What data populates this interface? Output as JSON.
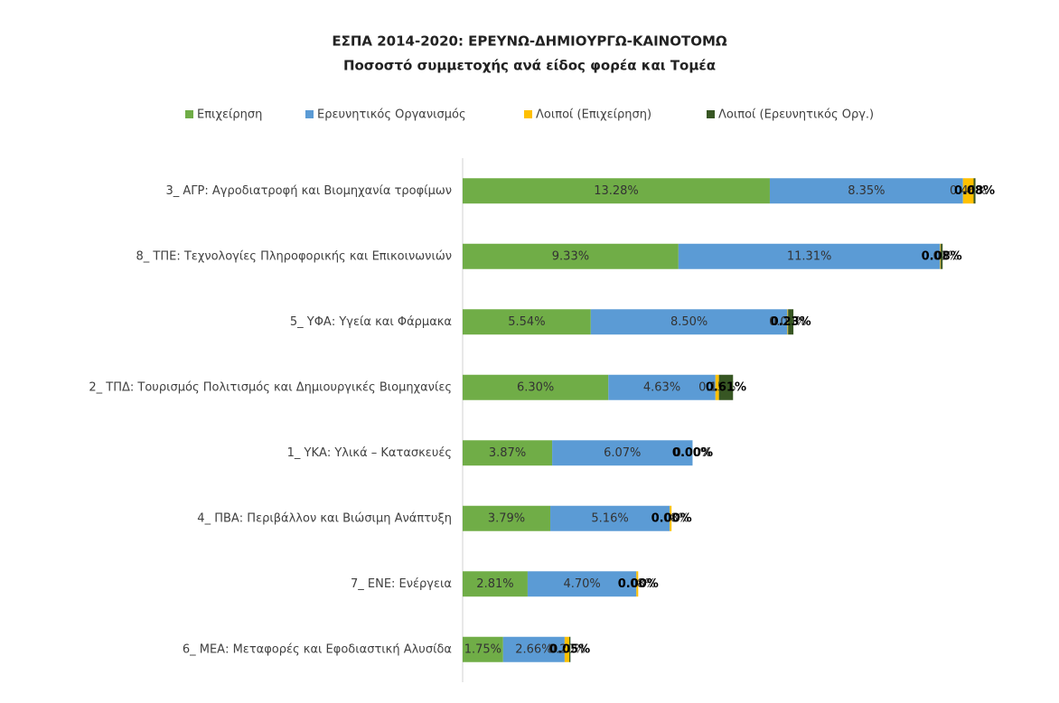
{
  "chart_data": {
    "type": "stacked_hbar",
    "title": "ΕΣΠΑ 2014-2020: ΕΡΕΥΝΩ-ΔΗΜΙΟΥΡΓΩ-ΚΑΙΝΟΤΟΜΩ",
    "subtitle": "Ποσοστό συμμετοχής ανά είδος φορέα και Τομέα",
    "categories": [
      "3_ ΑΓΡ: Αγροδιατροφή και Βιομηχανία τροφίμων",
      "8_ ΤΠΕ: Τεχνολογίες Πληροφορικής και Επικοινωνιών",
      "5_ ΥΦΑ: Υγεία και Φάρμακα",
      "2_ ΤΠΔ: Τουρισμός Πολιτισμός και Δημιουργικές Βιομηχανίες",
      "1_ ΥΚΑ: Υλικά – Κατασκευές",
      "4_ ΠΒΑ: Περιβάλλον και Βιώσιμη Ανάπτυξη",
      "7_ ΕΝΕ: Ενέργεια",
      "6_ ΜΕΑ: Μεταφορές και Εφοδιαστική Αλυσίδα"
    ],
    "series": [
      {
        "name": "Επιχείρηση",
        "color": "#70ad47",
        "values": [
          13.28,
          9.33,
          5.54,
          6.3,
          3.87,
          3.79,
          2.81,
          1.75
        ],
        "value_labels": [
          "13.28%",
          "9.33%",
          "5.54%",
          "6.30%",
          "3.87%",
          "3.79%",
          "2.81%",
          "1.75%"
        ]
      },
      {
        "name": "Ερευνητικός Οργανισμός",
        "color": "#5b9bd5",
        "values": [
          8.35,
          11.31,
          8.5,
          4.63,
          6.07,
          5.16,
          4.7,
          2.66
        ],
        "value_labels": [
          "8.35%",
          "11.31%",
          "8.50%",
          "4.63%",
          "6.07%",
          "5.16%",
          "4.70%",
          "2.66%"
        ]
      },
      {
        "name": "Λοιποί (Επιχείρηση)",
        "color": "#ffc000",
        "values": [
          0.46,
          0.03,
          0.03,
          0.15,
          0.0,
          0.08,
          0.08,
          0.2
        ],
        "value_labels": [
          "0.46%",
          "0.03%",
          "0.03%",
          "0.15%",
          "0.00%",
          "0.08%",
          "0.08%",
          "0.20%"
        ]
      },
      {
        "name": "Λοιποί (Ερευνητικός Οργ.)",
        "color": "#375623",
        "values": [
          0.08,
          0.08,
          0.23,
          0.61,
          0.0,
          0.0,
          0.0,
          0.05
        ],
        "value_labels": [
          "0.08%",
          "0.08%",
          "0.23%",
          "0.61%",
          "0.00%",
          "0.00%",
          "0.00%",
          "0.05%"
        ]
      }
    ],
    "xlim": [
      0,
      23
    ],
    "legend": "top"
  }
}
